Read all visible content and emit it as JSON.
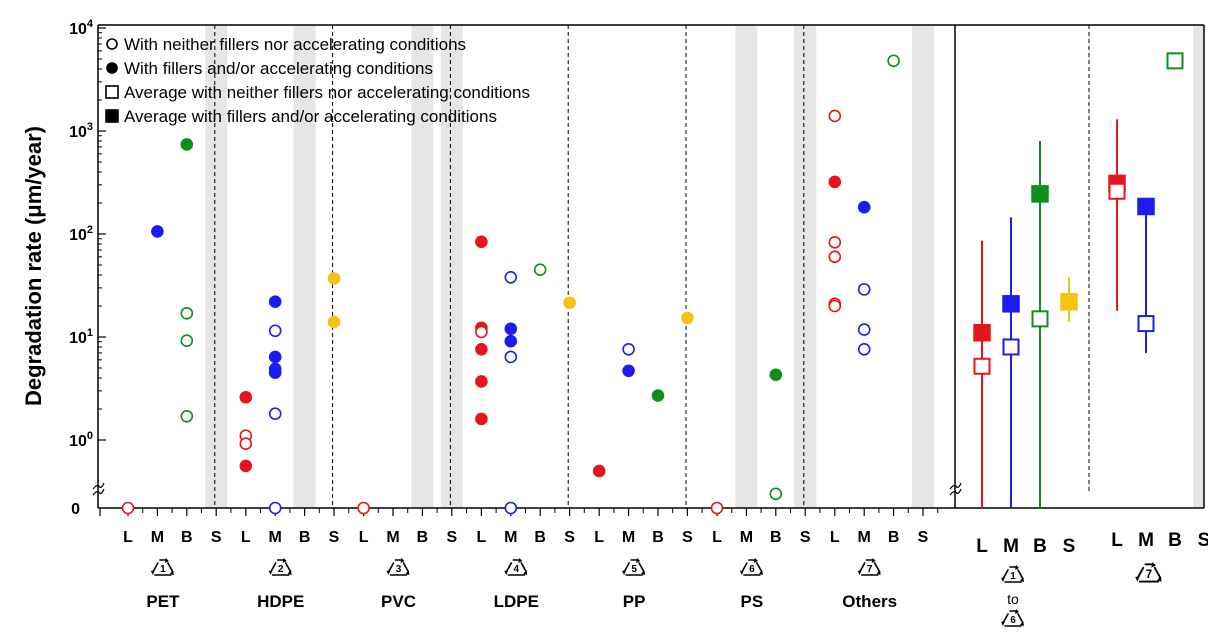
{
  "chart_data": {
    "type": "scatter",
    "ylabel": "Degradation rate (μm/year)",
    "y_scale": "log with zero break",
    "y_ticks": [
      "0",
      "10^0",
      "10^1",
      "10^2",
      "10^3",
      "10^4"
    ],
    "legend": [
      {
        "marker": "open-circle",
        "label": "With neither fillers nor accelerating conditions"
      },
      {
        "marker": "filled-circle",
        "label": "With fillers and/or accelerating conditions"
      },
      {
        "marker": "open-square",
        "label": "Average with neither fillers nor accelerating conditions"
      },
      {
        "marker": "filled-square",
        "label": "Average with fillers and/or accelerating conditions"
      }
    ],
    "legend_position": "top-left",
    "conditions": [
      "L",
      "M",
      "B",
      "S"
    ],
    "colors": {
      "L": "#e8141b",
      "M": "#1c1cf0",
      "B": "#0c8f1c",
      "S": "#f5c213",
      "shade": "#e6e6e6"
    },
    "groups": [
      {
        "code": "1",
        "name": "PET",
        "shaded": [
          "S"
        ]
      },
      {
        "code": "2",
        "name": "HDPE",
        "shaded": [
          "B"
        ]
      },
      {
        "code": "3",
        "name": "PVC",
        "shaded": [
          "B",
          "S"
        ]
      },
      {
        "code": "4",
        "name": "LDPE",
        "shaded": []
      },
      {
        "code": "5",
        "name": "PP",
        "shaded": []
      },
      {
        "code": "6",
        "name": "PS",
        "shaded": [
          "M",
          "S"
        ]
      },
      {
        "code": "7",
        "name": "Others",
        "shaded": [
          "S"
        ]
      }
    ],
    "points": [
      {
        "group": "PET",
        "cond": "L",
        "y": 0,
        "filled": false
      },
      {
        "group": "PET",
        "cond": "M",
        "y": 106,
        "filled": true
      },
      {
        "group": "PET",
        "cond": "B",
        "y": 740,
        "filled": true
      },
      {
        "group": "PET",
        "cond": "B",
        "y": 17,
        "filled": false
      },
      {
        "group": "PET",
        "cond": "B",
        "y": 9.2,
        "filled": false
      },
      {
        "group": "PET",
        "cond": "B",
        "y": 1.7,
        "filled": false
      },
      {
        "group": "HDPE",
        "cond": "L",
        "y": 2.6,
        "filled": true
      },
      {
        "group": "HDPE",
        "cond": "L",
        "y": 1.1,
        "filled": false
      },
      {
        "group": "HDPE",
        "cond": "L",
        "y": 0.92,
        "filled": false
      },
      {
        "group": "HDPE",
        "cond": "L",
        "y": 0.56,
        "filled": true
      },
      {
        "group": "HDPE",
        "cond": "M",
        "y": 22,
        "filled": true
      },
      {
        "group": "HDPE",
        "cond": "M",
        "y": 11.5,
        "filled": false
      },
      {
        "group": "HDPE",
        "cond": "M",
        "y": 6.4,
        "filled": true
      },
      {
        "group": "HDPE",
        "cond": "M",
        "y": 4.9,
        "filled": true
      },
      {
        "group": "HDPE",
        "cond": "M",
        "y": 4.5,
        "filled": true
      },
      {
        "group": "HDPE",
        "cond": "M",
        "y": 1.8,
        "filled": false
      },
      {
        "group": "HDPE",
        "cond": "M",
        "y": 0,
        "filled": false
      },
      {
        "group": "HDPE",
        "cond": "S",
        "y": 37,
        "filled": true
      },
      {
        "group": "HDPE",
        "cond": "S",
        "y": 14,
        "filled": true
      },
      {
        "group": "PVC",
        "cond": "L",
        "y": 0,
        "filled": false
      },
      {
        "group": "LDPE",
        "cond": "L",
        "y": 84,
        "filled": true
      },
      {
        "group": "LDPE",
        "cond": "L",
        "y": 12.3,
        "filled": true
      },
      {
        "group": "LDPE",
        "cond": "L",
        "y": 11.2,
        "filled": false
      },
      {
        "group": "LDPE",
        "cond": "L",
        "y": 7.6,
        "filled": true
      },
      {
        "group": "LDPE",
        "cond": "L",
        "y": 3.7,
        "filled": true
      },
      {
        "group": "LDPE",
        "cond": "L",
        "y": 1.6,
        "filled": true
      },
      {
        "group": "LDPE",
        "cond": "M",
        "y": 38,
        "filled": false
      },
      {
        "group": "LDPE",
        "cond": "M",
        "y": 12,
        "filled": true
      },
      {
        "group": "LDPE",
        "cond": "M",
        "y": 9.1,
        "filled": true
      },
      {
        "group": "LDPE",
        "cond": "M",
        "y": 6.4,
        "filled": false
      },
      {
        "group": "LDPE",
        "cond": "M",
        "y": 0,
        "filled": false
      },
      {
        "group": "LDPE",
        "cond": "B",
        "y": 45,
        "filled": false
      },
      {
        "group": "LDPE",
        "cond": "S",
        "y": 21.5,
        "filled": true
      },
      {
        "group": "PP",
        "cond": "L",
        "y": 0.5,
        "filled": true
      },
      {
        "group": "PP",
        "cond": "M",
        "y": 7.6,
        "filled": false
      },
      {
        "group": "PP",
        "cond": "M",
        "y": 4.7,
        "filled": true
      },
      {
        "group": "PP",
        "cond": "B",
        "y": 2.7,
        "filled": true
      },
      {
        "group": "PP",
        "cond": "S",
        "y": 15.3,
        "filled": true
      },
      {
        "group": "PS",
        "cond": "L",
        "y": 0,
        "filled": false
      },
      {
        "group": "PS",
        "cond": "B",
        "y": 4.3,
        "filled": true
      },
      {
        "group": "PS",
        "cond": "B",
        "y": 0.3,
        "filled": false
      },
      {
        "group": "Others",
        "cond": "L",
        "y": 1400,
        "filled": false
      },
      {
        "group": "Others",
        "cond": "L",
        "y": 320,
        "filled": true
      },
      {
        "group": "Others",
        "cond": "L",
        "y": 83,
        "filled": false
      },
      {
        "group": "Others",
        "cond": "L",
        "y": 60,
        "filled": false
      },
      {
        "group": "Others",
        "cond": "L",
        "y": 21,
        "filled": false
      },
      {
        "group": "Others",
        "cond": "L",
        "y": 20,
        "filled": false
      },
      {
        "group": "Others",
        "cond": "M",
        "y": 182,
        "filled": true
      },
      {
        "group": "Others",
        "cond": "M",
        "y": 29,
        "filled": false
      },
      {
        "group": "Others",
        "cond": "M",
        "y": 11.8,
        "filled": false
      },
      {
        "group": "Others",
        "cond": "M",
        "y": 7.6,
        "filled": false
      },
      {
        "group": "Others",
        "cond": "B",
        "y": 4800,
        "filled": false
      }
    ],
    "summary_groups": [
      {
        "label_top": "1",
        "label_mid": "to",
        "label_bottom": "6",
        "shaded": [],
        "averages": [
          {
            "cond": "L",
            "open": 5.2,
            "filled": 11,
            "min": 0,
            "max": 86
          },
          {
            "cond": "M",
            "open": 8,
            "filled": 21,
            "min": 0,
            "max": 145
          },
          {
            "cond": "B",
            "open": 15,
            "filled": 245,
            "min": 0,
            "max": 800
          },
          {
            "cond": "S",
            "filled": 22,
            "min": 14,
            "max": 38
          }
        ]
      },
      {
        "label_top": "7",
        "shaded": [
          "S"
        ],
        "averages": [
          {
            "cond": "L",
            "open": 260,
            "filled": 310,
            "min": 18,
            "max": 1300
          },
          {
            "cond": "M",
            "open": 13.5,
            "filled": 185,
            "min": 7,
            "max": 190
          },
          {
            "cond": "B",
            "open": 4800
          }
        ]
      }
    ]
  }
}
